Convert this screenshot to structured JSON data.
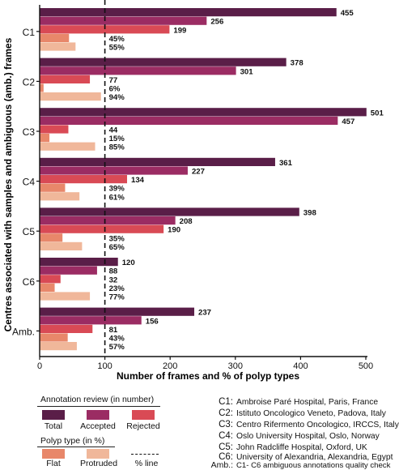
{
  "chart_data": {
    "type": "bar",
    "orientation": "horizontal",
    "categories": [
      "C1",
      "C2",
      "C3",
      "C4",
      "C5",
      "C6",
      "Amb."
    ],
    "series": [
      {
        "name": "Total",
        "kind": "number",
        "color": "#5a1e48",
        "values": [
          455,
          378,
          501,
          361,
          398,
          120,
          237
        ],
        "labels": [
          "455",
          "378",
          "501",
          "361",
          "398",
          "120",
          "237"
        ]
      },
      {
        "name": "Accepted",
        "kind": "number",
        "color": "#9b2c63",
        "values": [
          256,
          301,
          457,
          227,
          208,
          88,
          156
        ],
        "labels": [
          "256",
          "301",
          "457",
          "227",
          "208",
          "88",
          "156"
        ]
      },
      {
        "name": "Rejected",
        "kind": "number",
        "color": "#d94a55",
        "values": [
          199,
          77,
          44,
          134,
          190,
          32,
          81
        ],
        "labels": [
          "199",
          "77",
          "44",
          "134",
          "190",
          "32",
          "81"
        ]
      },
      {
        "name": "Flat",
        "kind": "percent",
        "color": "#e8876a",
        "values": [
          45,
          6,
          15,
          39,
          35,
          23,
          43
        ],
        "labels": [
          "45%",
          "6%",
          "15%",
          "39%",
          "35%",
          "23%",
          "43%"
        ]
      },
      {
        "name": "Protruded",
        "kind": "percent",
        "color": "#f0b79a",
        "values": [
          55,
          94,
          85,
          61,
          65,
          77,
          57
        ],
        "labels": [
          "55%",
          "94%",
          "85%",
          "61%",
          "65%",
          "77%",
          "57%"
        ]
      }
    ],
    "xlabel": "Number of frames and % of polyp types",
    "ylabel": "Centres associated with samples and ambiguous (amb.) frames",
    "xlim": [
      0,
      500
    ],
    "xticks": [
      "0",
      "100",
      "200",
      "300",
      "400",
      "500"
    ],
    "reference_line": {
      "x": 100,
      "style": "dashed"
    },
    "grid": false
  },
  "legend": {
    "review_title": "Annotation review (in number)",
    "review_items": [
      {
        "label": "Total",
        "color": "#5a1e48"
      },
      {
        "label": "Accepted",
        "color": "#9b2c63"
      },
      {
        "label": "Rejected",
        "color": "#d94a55"
      }
    ],
    "polyp_title": "Polyp type (in %)",
    "polyp_items": [
      {
        "label": "Flat",
        "color": "#e8876a"
      },
      {
        "label": "Protruded",
        "color": "#f0b79a"
      }
    ],
    "line_label": "% line"
  },
  "centres": [
    {
      "code": "C1:",
      "name": "Ambroise Paré Hospital, Paris, France"
    },
    {
      "code": "C2:",
      "name": "Istituto Oncologico Veneto, Padova, Italy"
    },
    {
      "code": "C3:",
      "name": "Centro Rifermento Oncologico, IRCCS, Italy"
    },
    {
      "code": "C4:",
      "name": "Oslo University Hospital, Oslo, Norway"
    },
    {
      "code": "C5:",
      "name": "John Radcliffe Hospital, Oxford, UK"
    },
    {
      "code": "C6:",
      "name": "University of Alexandria, Alexandria, Egypt"
    },
    {
      "code": "Amb.:",
      "name": "C1- C6 ambiguous annotations quality check"
    }
  ]
}
